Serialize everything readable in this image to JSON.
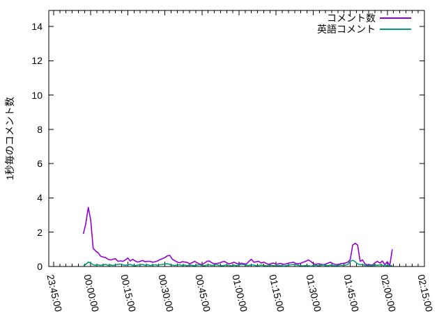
{
  "chart_data": {
    "type": "line",
    "title": "",
    "xlabel": "",
    "ylabel": "1秒毎のコメント数",
    "grid": false,
    "legend_position": "top-right-inside",
    "x_tick_labels": [
      "23:45:00",
      "00:00:00",
      "00:15:00",
      "00:30:00",
      "00:45:00",
      "01:00:00",
      "01:15:00",
      "01:30:00",
      "01:45:00",
      "02:00:00",
      "02:15:00"
    ],
    "y_tick_labels": [
      "0",
      "2",
      "4",
      "6",
      "8",
      "10",
      "12",
      "14"
    ],
    "ylim": [
      0,
      15
    ],
    "x_minor_ticks_per_interval": 6,
    "series_start_time": "23:57:00",
    "series_step_seconds": 60,
    "series": [
      {
        "name": "コメント数",
        "color": "#9400d3",
        "values": [
          1.9,
          2.5,
          3.45,
          2.7,
          1.05,
          0.9,
          0.8,
          0.6,
          0.55,
          0.52,
          0.42,
          0.38,
          0.42,
          0.46,
          0.3,
          0.33,
          0.3,
          0.38,
          0.5,
          0.32,
          0.42,
          0.32,
          0.26,
          0.3,
          0.35,
          0.28,
          0.3,
          0.3,
          0.25,
          0.28,
          0.32,
          0.4,
          0.46,
          0.52,
          0.62,
          0.65,
          0.42,
          0.34,
          0.26,
          0.22,
          0.28,
          0.26,
          0.24,
          0.16,
          0.22,
          0.3,
          0.22,
          0.15,
          0.1,
          0.2,
          0.3,
          0.32,
          0.22,
          0.15,
          0.18,
          0.2,
          0.26,
          0.3,
          0.22,
          0.15,
          0.2,
          0.25,
          0.18,
          0.15,
          0.2,
          0.16,
          0.14,
          0.3,
          0.42,
          0.25,
          0.28,
          0.3,
          0.2,
          0.26,
          0.18,
          0.12,
          0.18,
          0.2,
          0.12,
          0.16,
          0.18,
          0.12,
          0.15,
          0.2,
          0.22,
          0.25,
          0.18,
          0.15,
          0.2,
          0.25,
          0.3,
          0.38,
          0.3,
          0.18,
          0.12,
          0.16,
          0.14,
          0.1,
          0.14,
          0.2,
          0.25,
          0.16,
          0.12,
          0.1,
          0.16,
          0.18,
          0.2,
          0.25,
          0.4,
          1.25,
          1.35,
          1.25,
          0.3,
          0.38,
          0.14,
          0.1,
          0.1,
          0.08,
          0.22,
          0.3,
          0.2,
          0.32,
          0.1,
          0.28,
          0.05,
          1.0
        ]
      },
      {
        "name": "英語コメント",
        "color": "#009e73",
        "values": [
          0.06,
          0.12,
          0.26,
          0.2,
          0.1,
          0.07,
          0.1,
          0.06,
          0.1,
          0.12,
          0.07,
          0.09,
          0.06,
          0.1,
          0.12,
          0.14,
          0.1,
          0.07,
          0.1,
          0.12,
          0.07,
          0.05,
          0.08,
          0.1,
          0.12,
          0.07,
          0.1,
          0.06,
          0.08,
          0.1,
          0.07,
          0.1,
          0.12,
          0.14,
          0.16,
          0.12,
          0.08,
          0.06,
          0.08,
          0.1,
          0.06,
          0.08,
          0.05,
          0.09,
          0.07,
          0.05,
          0.08,
          0.1,
          0.06,
          0.05,
          0.08,
          0.1,
          0.06,
          0.08,
          0.1,
          0.07,
          0.05,
          0.06,
          0.1,
          0.06,
          0.04,
          0.08,
          0.05,
          0.09,
          0.12,
          0.1,
          0.07,
          0.06,
          0.1,
          0.08,
          0.05,
          0.06,
          0.09,
          0.06,
          0.04,
          0.06,
          0.08,
          0.05,
          0.04,
          0.06,
          0.05,
          0.03,
          0.05,
          0.08,
          0.1,
          0.12,
          0.1,
          0.07,
          0.05,
          0.04,
          0.06,
          0.05,
          0.03,
          0.05,
          0.08,
          0.05,
          0.06,
          0.09,
          0.07,
          0.05,
          0.08,
          0.06,
          0.04,
          0.06,
          0.08,
          0.06,
          0.08,
          0.12,
          0.3,
          0.36,
          0.28,
          0.15,
          0.1,
          0.12,
          0.06,
          0.05,
          0.06,
          0.05,
          0.09,
          0.07,
          0.1,
          0.08,
          0.03,
          0.07,
          0.04,
          0.06
        ]
      }
    ]
  },
  "colors": {
    "background": "#ffffff",
    "axis": "#000000",
    "text": "#000000"
  }
}
